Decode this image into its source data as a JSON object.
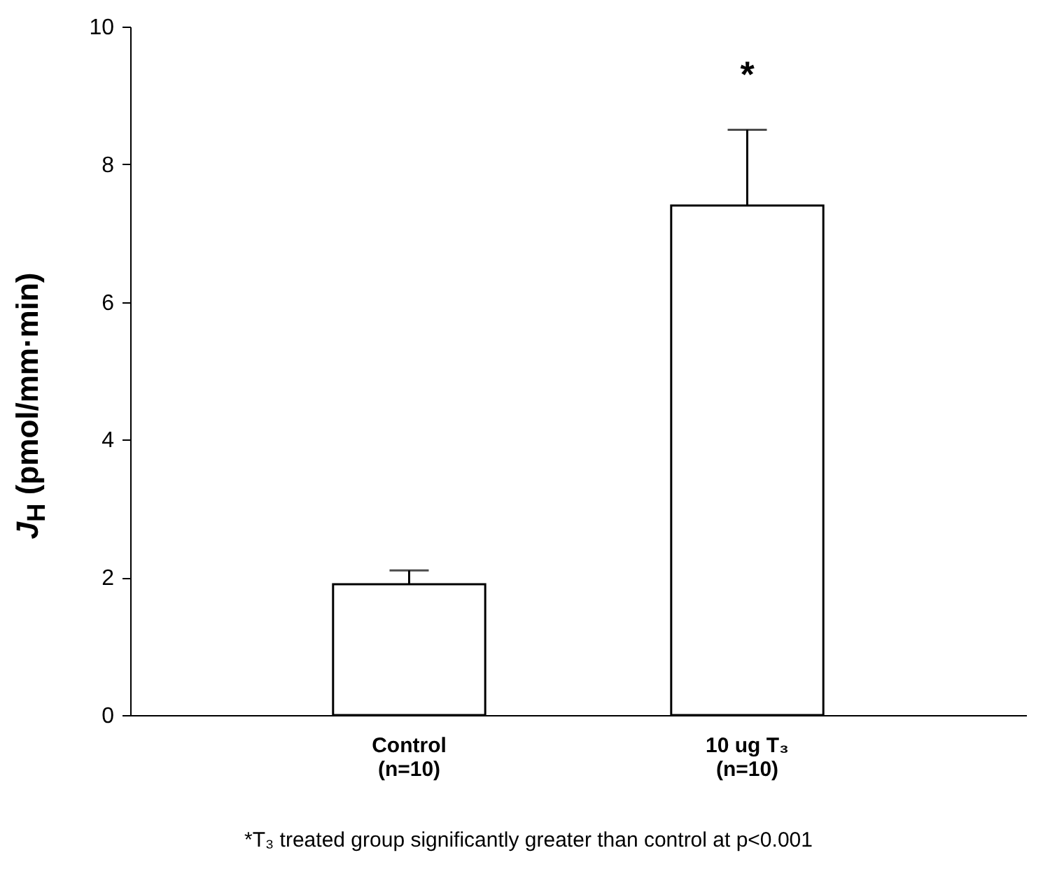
{
  "chart_data": {
    "type": "bar",
    "categories": [
      "Control\n(n=10)",
      "10 ug T₃\n(n=10)"
    ],
    "values": [
      1.9,
      7.4
    ],
    "errors": [
      [
        1.9,
        2.1
      ],
      [
        7.4,
        8.5
      ]
    ],
    "colors": [
      "#ffffff",
      "#ffffff"
    ],
    "ylabel": "J$_{H}$ (pmol/mm·min)",
    "ylim": [
      0,
      10
    ],
    "yticks": [
      0,
      2,
      4,
      6,
      8,
      10
    ],
    "annotations": [
      {
        "text": "*",
        "x": "10 ug T₃\n(n=10)",
        "y": 8.5
      },
      "*T₃ treated group significantly greater than control at p<0.001"
    ]
  }
}
